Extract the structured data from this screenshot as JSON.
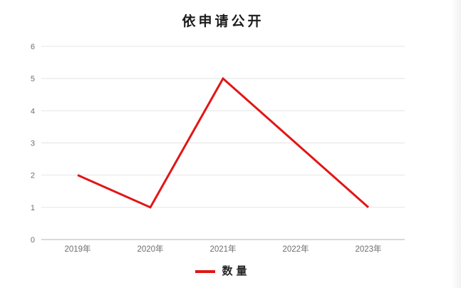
{
  "window": {
    "background": "#ffffff"
  },
  "chart_data": {
    "type": "line",
    "title": "依申请公开",
    "categories": [
      "2019年",
      "2020年",
      "2021年",
      "2022年",
      "2023年"
    ],
    "series": [
      {
        "name": "数量",
        "values": [
          2,
          1,
          5,
          3,
          1
        ],
        "color": "#e11616"
      }
    ],
    "xlabel": "",
    "ylabel": "",
    "ylim": [
      0,
      6
    ],
    "ytick_step": 1,
    "yticks": [
      0,
      1,
      2,
      3,
      4,
      5,
      6
    ],
    "grid": true,
    "legend_position": "bottom",
    "grid_color": "#e4e4e4",
    "axis_color": "#b5b5b5",
    "label_color": "#6e6e6e",
    "line_width": 3
  },
  "legend": {
    "label": "数量"
  },
  "colors": {
    "series_red": "#e11616",
    "title_text": "#1c1c1c",
    "tick_text": "#6e6e6e",
    "gridline": "#e4e4e4",
    "axis_line": "#b5b5b5"
  }
}
